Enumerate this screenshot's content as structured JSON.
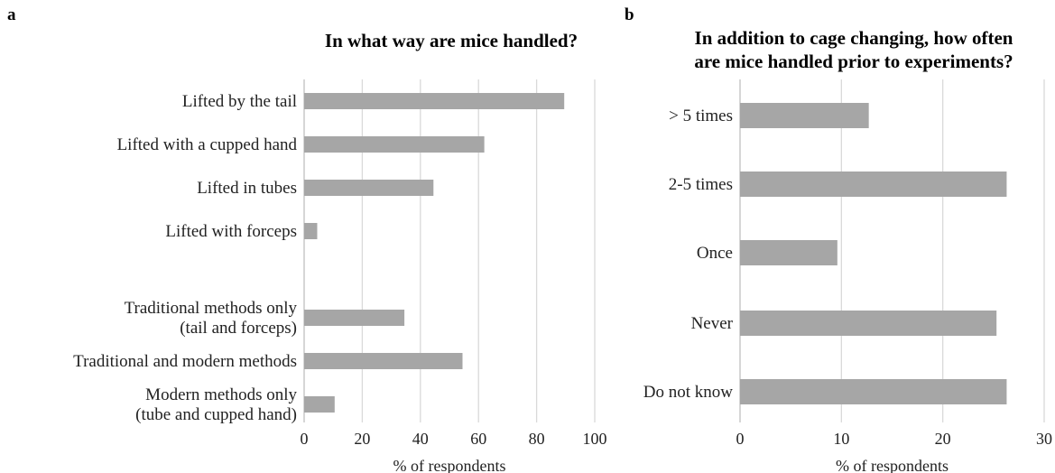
{
  "panels": [
    {
      "letter": "a",
      "title_lines": [
        "In what way are mice handled?"
      ]
    },
    {
      "letter": "b",
      "title_lines": [
        "In addition to cage changing, how often",
        "are mice handled prior to experiments?"
      ]
    }
  ],
  "colors": {
    "bar": "#a6a6a6",
    "grid": "#d9d9d9",
    "axis": "#bfbfbf",
    "text": "#222222"
  },
  "chart_data": [
    {
      "type": "bar",
      "orientation": "horizontal",
      "title": "In what way are mice handled?",
      "categories": [
        [
          "Lifted by the tail"
        ],
        [
          "Lifted with a cupped hand"
        ],
        [
          "Lifted in tubes"
        ],
        [
          "Lifted with forceps"
        ],
        null,
        [
          "Traditional methods only",
          "(tail and forceps)"
        ],
        [
          "Traditional and modern methods"
        ],
        [
          "Modern methods only",
          "(tube and cupped hand)"
        ]
      ],
      "values": [
        89.5,
        62,
        44.5,
        4.5,
        null,
        34.5,
        54.5,
        10.5
      ],
      "xlabel": "% of respondents",
      "ylabel": "",
      "xlim": [
        0,
        100
      ],
      "xticks": [
        0,
        20,
        40,
        60,
        80,
        100
      ],
      "grid": true
    },
    {
      "type": "bar",
      "orientation": "horizontal",
      "title": "In addition to cage changing, how often are mice handled prior to experiments?",
      "categories": [
        [
          "> 5 times"
        ],
        [
          "2-5 times"
        ],
        [
          "Once"
        ],
        [
          "Never"
        ],
        [
          "Do not know"
        ]
      ],
      "values": [
        12.7,
        26.3,
        9.6,
        25.3,
        26.3
      ],
      "xlabel": "% of respondents",
      "ylabel": "",
      "xlim": [
        0,
        30
      ],
      "xticks": [
        0,
        10,
        20,
        30
      ],
      "grid": true
    }
  ]
}
